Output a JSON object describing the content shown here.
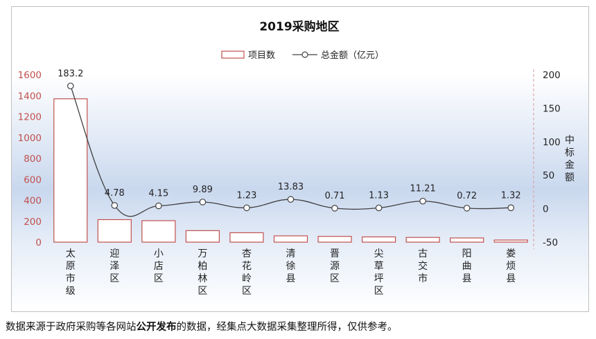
{
  "chart_data": {
    "type": "bar+line",
    "title": "2019采购地区",
    "categories": [
      "太原市级",
      "迎泽区",
      "小店区",
      "万柏林区",
      "杏花岭区",
      "清徐县",
      "晋源区",
      "尖草坪区",
      "古交市",
      "阳曲县",
      "娄烦县"
    ],
    "series": [
      {
        "name": "项目数",
        "type": "bar",
        "axis": "left",
        "values": [
          1370,
          215,
          205,
          110,
          90,
          60,
          55,
          50,
          45,
          40,
          20
        ]
      },
      {
        "name": "总金额（亿元）",
        "type": "line",
        "axis": "right",
        "values": [
          183.2,
          4.78,
          4.15,
          9.89,
          1.23,
          13.83,
          0.71,
          1.13,
          11.21,
          0.72,
          1.32
        ],
        "labels": [
          "183.2",
          "4.78",
          "4.15",
          "9.89",
          "1.23",
          "13.83",
          "0.71",
          "1.13",
          "11.21",
          "0.72",
          "1.32"
        ]
      }
    ],
    "y_left": {
      "min": 0,
      "max": 1600,
      "ticks": [
        "0",
        "200",
        "400",
        "600",
        "800",
        "1000",
        "1200",
        "1400",
        "1600"
      ]
    },
    "y_right": {
      "min": -50,
      "max": 200,
      "ticks": [
        "-50",
        "0",
        "50",
        "100",
        "150",
        "200"
      ],
      "label": "中标金额"
    },
    "legend": {
      "position": "top"
    },
    "colors": {
      "bar_edge": "#c0504d",
      "bar_fill": "#ffffff",
      "line": "#404040",
      "marker_fill": "#ffffff",
      "left_axis_text": "#c0504d"
    }
  },
  "footnote": {
    "before": "数据来源于政府采购等各网站",
    "bold": "公开发布",
    "after": "的数据，经集点大数据采集整理所得，仅供参考。"
  }
}
